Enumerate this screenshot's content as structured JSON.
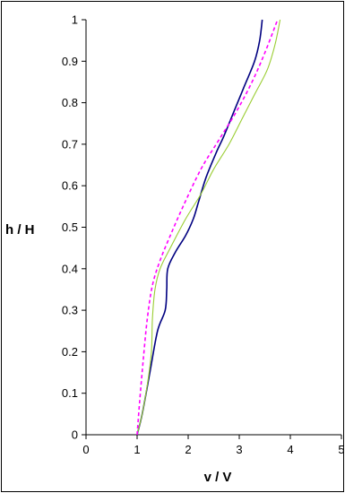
{
  "chart_data": {
    "type": "line",
    "xlabel": "v / V",
    "ylabel": "h / H",
    "xlim": [
      0,
      5
    ],
    "ylim": [
      0,
      1
    ],
    "x_ticks": [
      "0",
      "1",
      "2",
      "3",
      "4",
      "5"
    ],
    "y_ticks": [
      "0",
      "0.1",
      "0.2",
      "0.3",
      "0.4",
      "0.5",
      "0.6",
      "0.7",
      "0.8",
      "0.9",
      "1"
    ],
    "grid": false,
    "legend": "none",
    "series": [
      {
        "color": "#000080",
        "style": "solid",
        "points": [
          [
            1.0,
            0.0
          ],
          [
            1.1,
            0.05
          ],
          [
            1.25,
            0.15
          ],
          [
            1.4,
            0.25
          ],
          [
            1.55,
            0.3
          ],
          [
            1.58,
            0.35
          ],
          [
            1.6,
            0.4
          ],
          [
            1.75,
            0.44
          ],
          [
            1.95,
            0.48
          ],
          [
            2.1,
            0.52
          ],
          [
            2.2,
            0.56
          ],
          [
            2.35,
            0.62
          ],
          [
            2.55,
            0.68
          ],
          [
            2.7,
            0.72
          ],
          [
            2.9,
            0.78
          ],
          [
            3.1,
            0.84
          ],
          [
            3.3,
            0.9
          ],
          [
            3.4,
            0.95
          ],
          [
            3.45,
            1.0
          ]
        ]
      },
      {
        "color": "#9acd32",
        "style": "solid",
        "points": [
          [
            1.0,
            0.0
          ],
          [
            1.1,
            0.05
          ],
          [
            1.2,
            0.12
          ],
          [
            1.28,
            0.2
          ],
          [
            1.3,
            0.28
          ],
          [
            1.35,
            0.35
          ],
          [
            1.45,
            0.4
          ],
          [
            1.65,
            0.45
          ],
          [
            1.95,
            0.52
          ],
          [
            2.25,
            0.58
          ],
          [
            2.5,
            0.64
          ],
          [
            2.8,
            0.7
          ],
          [
            3.05,
            0.76
          ],
          [
            3.3,
            0.82
          ],
          [
            3.55,
            0.88
          ],
          [
            3.7,
            0.94
          ],
          [
            3.8,
            1.0
          ]
        ]
      },
      {
        "color": "#ff00ff",
        "style": "dashed",
        "points": [
          [
            1.0,
            0.0
          ],
          [
            1.05,
            0.08
          ],
          [
            1.12,
            0.18
          ],
          [
            1.2,
            0.28
          ],
          [
            1.3,
            0.36
          ],
          [
            1.45,
            0.42
          ],
          [
            1.65,
            0.48
          ],
          [
            1.9,
            0.55
          ],
          [
            2.25,
            0.64
          ],
          [
            2.6,
            0.71
          ],
          [
            2.95,
            0.78
          ],
          [
            3.25,
            0.85
          ],
          [
            3.5,
            0.92
          ],
          [
            3.75,
            1.0
          ]
        ]
      }
    ]
  }
}
